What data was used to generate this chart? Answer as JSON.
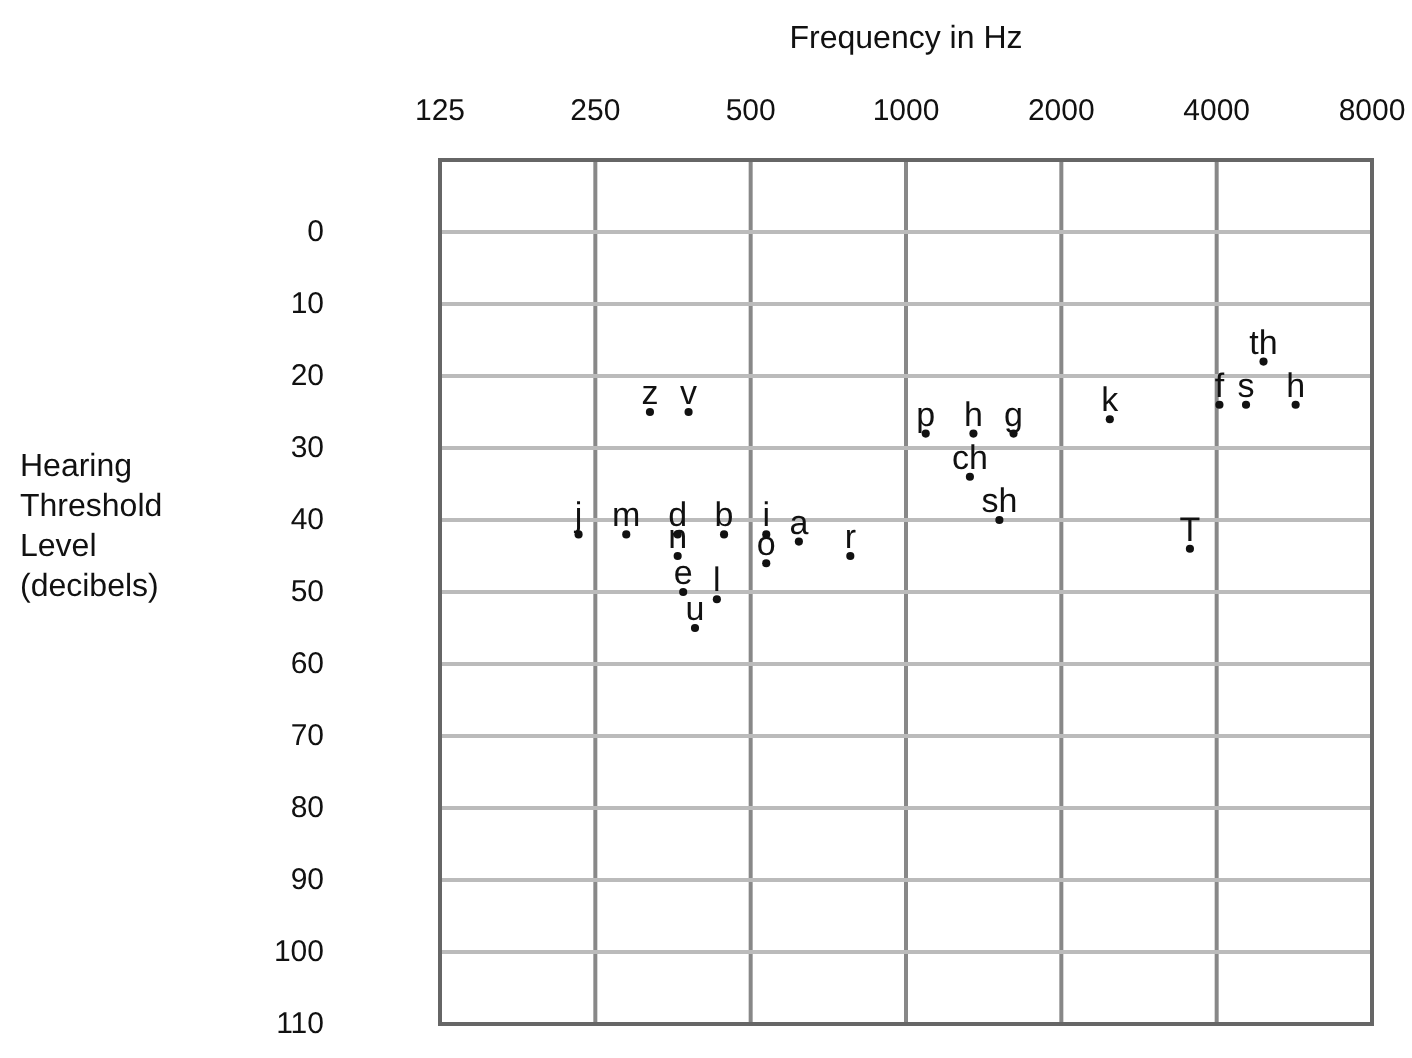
{
  "chart_data": {
    "type": "scatter",
    "xlabel": "Frequency in Hz",
    "ylabel": "Hearing Threshold Level (decibels)",
    "log": "x",
    "xlim": [
      125,
      8000
    ],
    "xticks": [
      125,
      250,
      500,
      1000,
      2000,
      4000,
      8000
    ],
    "ylim": [
      110,
      -10
    ],
    "yticks": [
      0,
      10,
      20,
      30,
      40,
      50,
      60,
      70,
      80,
      90,
      100,
      110
    ],
    "grid": true,
    "marker": "circle",
    "series": [
      {
        "color": "#111111",
        "x": [
          319,
          379,
          232,
          287,
          361,
          444,
          536,
          361,
          536,
          620,
          780,
          370,
          430,
          390,
          1092,
          1351,
          1616,
          1330,
          1517,
          2483,
          3550,
          4930,
          4050,
          4560,
          5690
        ],
        "values": [
          25,
          25,
          42,
          42,
          42,
          42,
          42,
          45,
          46,
          43,
          45,
          50,
          51,
          55,
          28,
          28,
          28,
          34,
          40,
          26,
          44,
          18,
          24,
          24,
          24
        ],
        "value_labels": [
          "z",
          "v",
          "j",
          "m",
          "d",
          "b",
          "i",
          "n",
          "o",
          "a",
          "r",
          "e",
          "l",
          "u",
          "p",
          "h",
          "g",
          "ch",
          "sh",
          "k",
          "T",
          "th",
          "f",
          "s",
          "h"
        ]
      }
    ]
  }
}
